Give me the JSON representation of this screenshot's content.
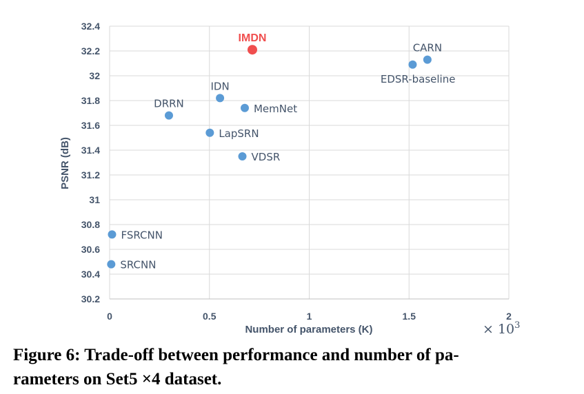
{
  "chart_data": {
    "type": "scatter",
    "xlabel": "Number of parameters (K)",
    "ylabel": "PSNR (dB)",
    "x_multiplier_label": "× 10",
    "x_multiplier_exp": "3",
    "xlim": [
      0,
      2
    ],
    "ylim": [
      30.2,
      32.4
    ],
    "x_ticks": [
      "0",
      "0.5",
      "1",
      "1.5",
      "2"
    ],
    "y_ticks": [
      "30.2",
      "30.4",
      "30.6",
      "30.8",
      "31",
      "31.2",
      "31.4",
      "31.6",
      "31.8",
      "32",
      "32.2",
      "32.4"
    ],
    "grid": true,
    "colors": {
      "default": "#5b9bd5",
      "highlight": "#f04e4e",
      "axis_text": "#44546a",
      "grid": "#d9d9d9"
    },
    "points": [
      {
        "name": "IMDN",
        "x": 0.715,
        "y": 32.21,
        "highlight": true,
        "label_pos": "above"
      },
      {
        "name": "CARN",
        "x": 1.592,
        "y": 32.13,
        "highlight": false,
        "label_pos": "above"
      },
      {
        "name": "EDSR-baseline",
        "x": 1.518,
        "y": 32.09,
        "highlight": false,
        "label_pos": "below"
      },
      {
        "name": "IDN",
        "x": 0.553,
        "y": 31.82,
        "highlight": false,
        "label_pos": "above"
      },
      {
        "name": "MemNet",
        "x": 0.677,
        "y": 31.74,
        "highlight": false,
        "label_pos": "right"
      },
      {
        "name": "DRRN",
        "x": 0.297,
        "y": 31.68,
        "highlight": false,
        "label_pos": "above"
      },
      {
        "name": "LapSRN",
        "x": 0.502,
        "y": 31.54,
        "highlight": false,
        "label_pos": "right"
      },
      {
        "name": "VDSR",
        "x": 0.665,
        "y": 31.35,
        "highlight": false,
        "label_pos": "right"
      },
      {
        "name": "FSRCNN",
        "x": 0.012,
        "y": 30.72,
        "highlight": false,
        "label_pos": "right"
      },
      {
        "name": "SRCNN",
        "x": 0.008,
        "y": 30.48,
        "highlight": false,
        "label_pos": "right"
      }
    ]
  },
  "caption": {
    "line1": "Figure 6: Trade-off between performance and number of pa-",
    "line2": "rameters on Set5 ×4 dataset."
  }
}
